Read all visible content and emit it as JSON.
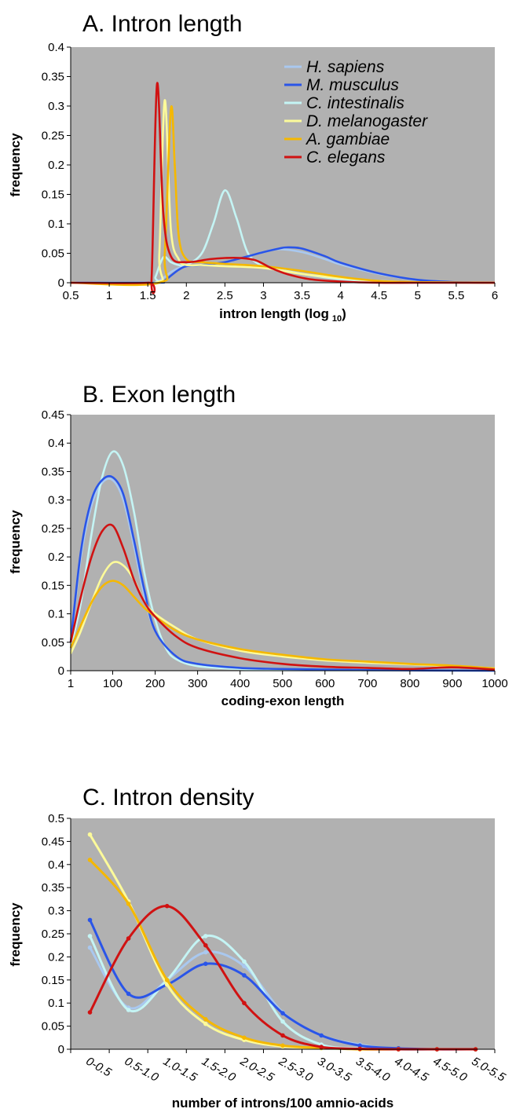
{
  "colors": {
    "H. sapiens": "#a9c8ef",
    "M. musculus": "#2a55e8",
    "C. intestinalis": "#c4f4f4",
    "D. melanogaster": "#fcfa9a",
    "A. gambiae": "#f5b800",
    "C. elegans": "#d01212",
    "plot_bg": "#b1b1b1"
  },
  "legend": [
    "H. sapiens",
    "M. musculus",
    "C. intestinalis",
    "D. melanogaster",
    "A. gambiae",
    "C. elegans"
  ],
  "chart_data": [
    {
      "type": "line",
      "title": "A. Intron length",
      "xlabel": "intron length (log",
      "xlabel_sub": "10",
      "xlabel_close": ")",
      "ylabel": "frequency",
      "xlim": [
        0.5,
        6
      ],
      "ylim": [
        0,
        0.4
      ],
      "xticks": [
        "0.5",
        "1",
        "1.5",
        "2",
        "2.5",
        "3",
        "3.5",
        "4",
        "4.5",
        "5",
        "5.5",
        "6"
      ],
      "yticks": [
        "0",
        "0.05",
        "0.1",
        "0.15",
        "0.2",
        "0.25",
        "0.3",
        "0.35",
        "0.4"
      ],
      "legend_position": "top-right",
      "series": [
        {
          "name": "H. sapiens",
          "x": [
            0.5,
            1.5,
            1.6,
            1.7,
            1.8,
            1.9,
            2,
            2.2,
            2.5,
            2.8,
            3,
            3.2,
            3.5,
            3.8,
            4,
            4.5,
            5,
            5.5,
            6
          ],
          "y": [
            0,
            0,
            0.001,
            0.008,
            0.018,
            0.025,
            0.028,
            0.03,
            0.035,
            0.045,
            0.052,
            0.057,
            0.052,
            0.04,
            0.031,
            0.015,
            0.005,
            0.001,
            0
          ]
        },
        {
          "name": "M. musculus",
          "x": [
            0.5,
            1.6,
            1.7,
            1.8,
            1.9,
            2,
            2.2,
            2.5,
            2.8,
            3,
            3.2,
            3.3,
            3.5,
            3.8,
            4,
            4.5,
            5,
            5.5,
            6
          ],
          "y": [
            0,
            0,
            0.002,
            0.012,
            0.022,
            0.028,
            0.03,
            0.035,
            0.045,
            0.052,
            0.058,
            0.06,
            0.058,
            0.045,
            0.034,
            0.016,
            0.005,
            0.001,
            0
          ]
        },
        {
          "name": "C. intestinalis",
          "x": [
            0.5,
            1.55,
            1.6,
            1.7,
            1.8,
            1.9,
            2,
            2.2,
            2.35,
            2.5,
            2.65,
            2.8,
            3,
            3.3,
            3.6,
            4,
            4.5,
            5,
            6
          ],
          "y": [
            0,
            0,
            0.01,
            0.043,
            0.035,
            0.03,
            0.03,
            0.05,
            0.1,
            0.157,
            0.11,
            0.05,
            0.028,
            0.02,
            0.013,
            0.006,
            0.002,
            0,
            0
          ]
        },
        {
          "name": "D. melanogaster",
          "x": [
            0.5,
            1.6,
            1.65,
            1.72,
            1.8,
            1.9,
            2,
            2.2,
            2.5,
            3,
            3.5,
            4,
            4.5,
            5,
            6
          ],
          "y": [
            0,
            0,
            0.05,
            0.31,
            0.09,
            0.04,
            0.03,
            0.03,
            0.028,
            0.025,
            0.015,
            0.008,
            0.003,
            0.001,
            0
          ]
        },
        {
          "name": "A. gambiae",
          "x": [
            0.5,
            1.65,
            1.72,
            1.8,
            1.85,
            1.9,
            2,
            2.2,
            2.5,
            3,
            3.5,
            4,
            4.5,
            5,
            6
          ],
          "y": [
            0,
            0,
            0.05,
            0.295,
            0.2,
            0.08,
            0.04,
            0.035,
            0.032,
            0.028,
            0.02,
            0.01,
            0.003,
            0.001,
            0
          ]
        },
        {
          "name": "C. elegans",
          "x": [
            0.5,
            1.5,
            1.55,
            1.62,
            1.7,
            1.8,
            2,
            2.3,
            2.5,
            2.7,
            2.9,
            3.1,
            3.3,
            3.6,
            4,
            4.5,
            5,
            6
          ],
          "y": [
            0,
            0,
            0.01,
            0.338,
            0.12,
            0.045,
            0.035,
            0.04,
            0.042,
            0.042,
            0.038,
            0.025,
            0.015,
            0.006,
            0.002,
            0,
            0,
            0
          ]
        }
      ]
    },
    {
      "type": "line",
      "title": "B. Exon length",
      "xlabel": "coding-exon length",
      "ylabel": "frequency",
      "xlim": [
        1,
        1000
      ],
      "ylim": [
        0,
        0.45
      ],
      "xticks": [
        "1",
        "100",
        "200",
        "300",
        "400",
        "500",
        "600",
        "700",
        "800",
        "900",
        "1000"
      ],
      "xtick_values": [
        1,
        100,
        200,
        300,
        400,
        500,
        600,
        700,
        800,
        900,
        1000
      ],
      "yticks": [
        "0",
        "0.05",
        "0.1",
        "0.15",
        "0.2",
        "0.25",
        "0.3",
        "0.35",
        "0.4",
        "0.45"
      ],
      "series": [
        {
          "name": "H. sapiens",
          "x": [
            1,
            25,
            50,
            75,
            100,
            125,
            150,
            175,
            200,
            250,
            300,
            400,
            500,
            700,
            1000
          ],
          "y": [
            0.05,
            0.2,
            0.29,
            0.33,
            0.335,
            0.3,
            0.22,
            0.13,
            0.07,
            0.025,
            0.012,
            0.005,
            0.003,
            0.001,
            0
          ]
        },
        {
          "name": "M. musculus",
          "x": [
            1,
            25,
            50,
            75,
            100,
            125,
            150,
            175,
            200,
            250,
            300,
            400,
            500,
            700,
            1000
          ],
          "y": [
            0.05,
            0.21,
            0.3,
            0.335,
            0.34,
            0.31,
            0.23,
            0.14,
            0.07,
            0.025,
            0.012,
            0.005,
            0.003,
            0.001,
            0
          ]
        },
        {
          "name": "C. intestinalis",
          "x": [
            1,
            25,
            50,
            75,
            100,
            125,
            150,
            175,
            200,
            225,
            250,
            300,
            400,
            500,
            1000
          ],
          "y": [
            0.04,
            0.12,
            0.24,
            0.34,
            0.385,
            0.36,
            0.28,
            0.17,
            0.09,
            0.04,
            0.02,
            0.008,
            0.003,
            0.001,
            0
          ]
        },
        {
          "name": "D. melanogaster",
          "x": [
            1,
            25,
            50,
            75,
            100,
            125,
            150,
            175,
            200,
            250,
            300,
            400,
            500,
            600,
            700,
            800,
            900,
            1000
          ],
          "y": [
            0.03,
            0.07,
            0.12,
            0.165,
            0.19,
            0.185,
            0.16,
            0.12,
            0.1,
            0.075,
            0.055,
            0.035,
            0.025,
            0.018,
            0.014,
            0.011,
            0.008,
            0.004
          ]
        },
        {
          "name": "A. gambiae",
          "x": [
            1,
            25,
            50,
            75,
            100,
            125,
            150,
            175,
            200,
            250,
            300,
            400,
            500,
            600,
            700,
            800,
            900,
            1000
          ],
          "y": [
            0.04,
            0.08,
            0.12,
            0.148,
            0.158,
            0.15,
            0.13,
            0.11,
            0.095,
            0.07,
            0.055,
            0.038,
            0.028,
            0.02,
            0.016,
            0.012,
            0.009,
            0.004
          ]
        },
        {
          "name": "C. elegans",
          "x": [
            1,
            25,
            50,
            75,
            100,
            125,
            150,
            175,
            200,
            250,
            300,
            400,
            500,
            600,
            700,
            800,
            900,
            1000
          ],
          "y": [
            0.05,
            0.13,
            0.2,
            0.245,
            0.255,
            0.215,
            0.16,
            0.12,
            0.095,
            0.06,
            0.04,
            0.022,
            0.012,
            0.007,
            0.005,
            0.003,
            0.006,
            0.002
          ]
        }
      ]
    },
    {
      "type": "line",
      "title": "C. Intron density",
      "xlabel": "number of introns/100 amnio-acids",
      "ylabel": "frequency",
      "ylim": [
        0,
        0.5
      ],
      "categories": [
        "0-0.5",
        "0.5-1.0",
        "1.0-1.5",
        "1.5-2.0",
        "2.0-2.5",
        "2.5-3.0",
        "3.0-3.5",
        "3.5-4.0",
        "4.0-4.5",
        "4.5-5.0",
        "5.0-5.5"
      ],
      "yticks": [
        "0",
        "0.05",
        "0.1",
        "0.15",
        "0.2",
        "0.25",
        "0.3",
        "0.35",
        "0.4",
        "0.45",
        "0.5"
      ],
      "series": [
        {
          "name": "H. sapiens",
          "values": [
            0.22,
            0.09,
            0.15,
            0.21,
            0.18,
            0.08,
            0.03,
            0.01,
            0,
            0,
            0
          ]
        },
        {
          "name": "M. musculus",
          "values": [
            0.28,
            0.12,
            0.14,
            0.185,
            0.16,
            0.078,
            0.03,
            0.008,
            0.002,
            0,
            0
          ]
        },
        {
          "name": "C. intestinalis",
          "values": [
            0.245,
            0.085,
            0.15,
            0.245,
            0.19,
            0.06,
            0.01,
            0.002,
            0,
            0,
            0
          ]
        },
        {
          "name": "D. melanogaster",
          "values": [
            0.465,
            0.32,
            0.14,
            0.055,
            0.02,
            0.006,
            0.002,
            0,
            0,
            0,
            0
          ]
        },
        {
          "name": "A. gambiae",
          "values": [
            0.41,
            0.315,
            0.15,
            0.065,
            0.025,
            0.008,
            0.003,
            0,
            0,
            0,
            0
          ]
        },
        {
          "name": "C. elegans",
          "values": [
            0.08,
            0.24,
            0.31,
            0.225,
            0.1,
            0.03,
            0.005,
            0.001,
            0,
            0,
            0
          ]
        }
      ]
    }
  ]
}
